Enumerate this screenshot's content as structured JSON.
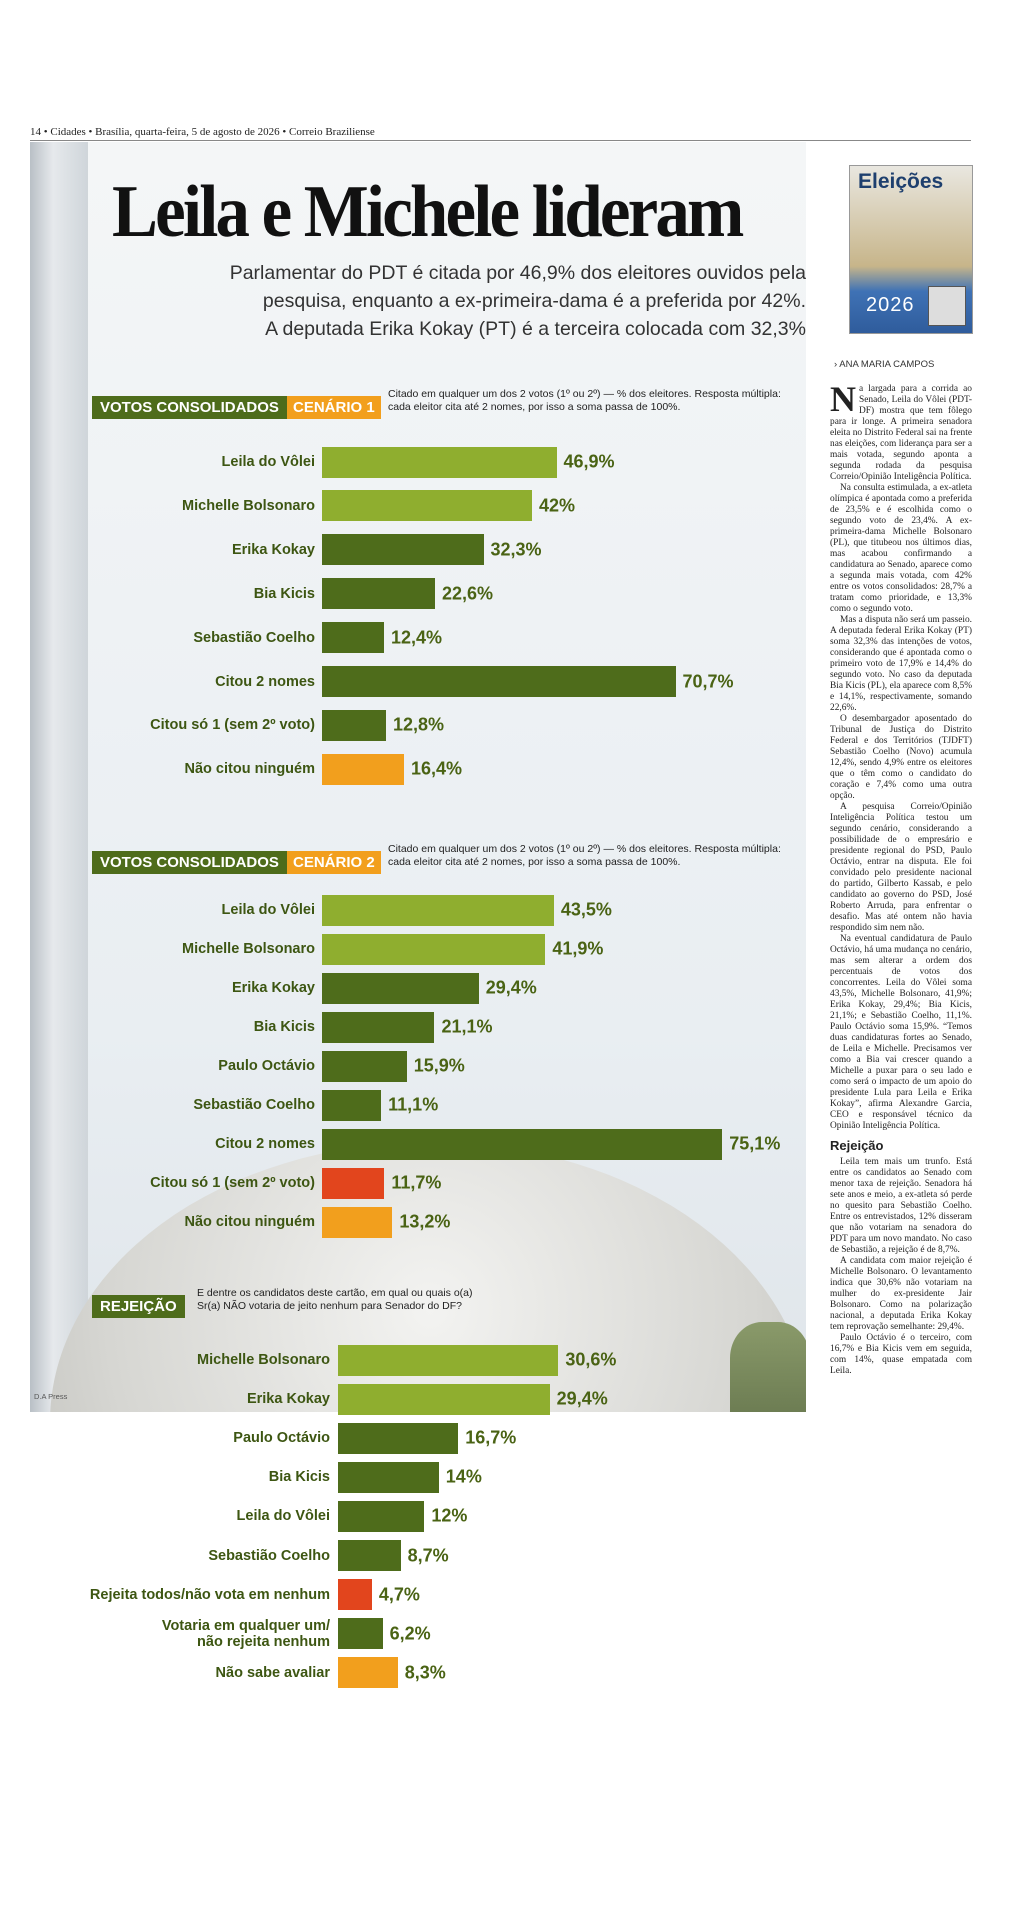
{
  "header": {
    "line": "14 • Cidades • Brasília, quarta-feira, 5 de agosto de 2026 • Correio Braziliense"
  },
  "headline": "Leila e Michele lideram",
  "subtitle": [
    "Parlamentar do PDT é citada por 46,9% dos eleitores ouvidos pela",
    "pesquisa, enquanto a ex-primeira-dama é a preferida por 42%.",
    "A deputada Erika Kokay (PT) é a terceira colocada com 32,3%"
  ],
  "badge": {
    "title": "Eleições",
    "year": "2026"
  },
  "photo_credit": "D.A Press",
  "chart_data": [
    {
      "type": "bar",
      "title": "VOTOS CONSOLIDADOS",
      "subtitle": "CENÁRIO 1",
      "note": "Citado em qualquer um dos 2 votos (1º ou 2º) — % dos eleitores. Resposta múltipla: cada eleitor cita até 2 nomes, por isso a soma passa de 100%.",
      "categories": [
        "Leila do Vôlei",
        "Michelle Bolsonaro",
        "Erika Kokay",
        "Bia Kicis",
        "Sebastião Coelho",
        "Citou 2 nomes",
        "Citou só 1 (sem 2º voto)",
        "Não citou ninguém"
      ],
      "values": [
        46.9,
        42,
        32.3,
        22.6,
        12.4,
        70.7,
        12.8,
        16.4
      ],
      "value_labels": [
        "46,9%",
        "42%",
        "32,3%",
        "22,6%",
        "12,4%",
        "70,7%",
        "12,8%",
        "16,4%"
      ],
      "colors": [
        "#8fae2f",
        "#8fae2f",
        "#4e6c1b",
        "#4e6c1b",
        "#4e6c1b",
        "#4e6c1b",
        "#4e6c1b",
        "#f29f1d"
      ]
    },
    {
      "type": "bar",
      "title": "VOTOS CONSOLIDADOS",
      "subtitle": "CENÁRIO 2",
      "note": "Citado em qualquer um dos 2 votos (1º ou 2º) — % dos eleitores. Resposta múltipla: cada eleitor cita até 2 nomes, por isso a soma passa de 100%.",
      "categories": [
        "Leila do Vôlei",
        "Michelle Bolsonaro",
        "Erika Kokay",
        "Bia Kicis",
        "Paulo Octávio",
        "Sebastião Coelho",
        "Citou 2 nomes",
        "Citou só 1 (sem 2º voto)",
        "Não citou ninguém"
      ],
      "values": [
        43.5,
        41.9,
        29.4,
        21.1,
        15.9,
        11.1,
        75.1,
        11.7,
        13.2
      ],
      "value_labels": [
        "43,5%",
        "41,9%",
        "29,4%",
        "21,1%",
        "15,9%",
        "11,1%",
        "75,1%",
        "11,7%",
        "13,2%"
      ],
      "colors": [
        "#8fae2f",
        "#8fae2f",
        "#4e6c1b",
        "#4e6c1b",
        "#4e6c1b",
        "#4e6c1b",
        "#4e6c1b",
        "#e2451d",
        "#f29f1d"
      ]
    },
    {
      "type": "bar",
      "title": "REJEIÇÃO",
      "note": "E dentre os candidatos deste cartão, em qual ou quais o(a) Sr(a) NÃO votaria de jeito nenhum para Senador do DF?",
      "categories": [
        "Michelle Bolsonaro",
        "Erika Kokay",
        "Paulo Octávio",
        "Bia Kicis",
        "Leila do Vôlei",
        "Sebastião Coelho",
        "Rejeita todos/não vota em nenhum",
        "Votaria em qualquer um/\nnão rejeita nenhum",
        "Não sabe avaliar"
      ],
      "values": [
        30.6,
        29.4,
        16.7,
        14,
        12,
        8.7,
        4.7,
        6.2,
        8.3
      ],
      "value_labels": [
        "30,6%",
        "29,4%",
        "16,7%",
        "14%",
        "12%",
        "8,7%",
        "4,7%",
        "6,2%",
        "8,3%"
      ],
      "colors": [
        "#8fae2f",
        "#8fae2f",
        "#4e6c1b",
        "#4e6c1b",
        "#4e6c1b",
        "#4e6c1b",
        "#e2451d",
        "#4e6c1b",
        "#f29f1d"
      ]
    }
  ],
  "article": {
    "byline": "› ANA MARIA CAMPOS",
    "paragraphs": [
      "Na largada para a corrida ao Senado, Leila do Vôlei (PDT-DF) mostra que tem fôlego para ir longe. A primeira senadora eleita no Distrito Federal sai na frente nas eleições, com liderança para ser a mais votada, segundo aponta a segunda rodada da pesquisa Correio/Opinião Inteligência Política.",
      "Na consulta estimulada, a ex-atleta olímpica é apontada como a preferida de 23,5% e é escolhida como o segundo voto de 23,4%. A ex-primeira-dama Michelle Bolsonaro (PL), que titubeou nos últimos dias, mas acabou confirmando a candidatura ao Senado, aparece como a segunda mais votada, com 42% entre os votos consolidados: 28,7% a tratam como prioridade, e 13,3% como o segundo voto.",
      "Mas a disputa não será um passeio. A deputada federal Erika Kokay (PT) soma 32,3% das intenções de votos, considerando que é apontada como o primeiro voto de 17,9% e 14,4% do segundo voto. No caso da deputada Bia Kicis (PL), ela aparece com 8,5% e 14,1%, respectivamente, somando 22,6%.",
      "O desembargador aposentado do Tribunal de Justiça do Distrito Federal e dos Territórios (TJDFT) Sebastião Coelho (Novo) acumula 12,4%, sendo 4,9% entre os eleitores que o têm como o candidato do coração e 7,4% como uma outra opção.",
      "A pesquisa Correio/Opinião Inteligência Política testou um segundo cenário, considerando a possibilidade de o empresário e presidente regional do PSD, Paulo Octávio, entrar na disputa. Ele foi convidado pelo presidente nacional do partido, Gilberto Kassab, e pelo candidato ao governo do PSD, José Roberto Arruda, para enfrentar o desafio. Mas até ontem não havia respondido sim nem não.",
      "Na eventual candidatura de Paulo Octávio, há uma mudança no cenário, mas sem alterar a ordem dos percentuais de votos dos concorrentes. Leila do Vôlei soma 43,5%, Michelle Bolsonaro, 41,9%; Erika Kokay, 29,4%; Bia Kicis, 21,1%; e Sebastião Coelho, 11,1%. Paulo Octávio soma 15,9%. “Temos duas candidaturas fortes ao Senado, de Leila e Michelle. Precisamos ver como a Bia vai crescer quando a Michelle a puxar para o seu lado e como será o impacto de um apoio do presidente Lula para Leila e Erika Kokay”, afirma Alexandre Garcia, CEO e responsável técnico da Opinião Inteligência Política."
    ],
    "subhead": "Rejeição",
    "paragraphs2": [
      "Leila tem mais um trunfo. Está entre os candidatos ao Senado com menor taxa de rejeição. Senadora há sete anos e meio, a ex-atleta só perde no quesito para Sebastião Coelho. Entre os entrevistados, 12% disseram que não votariam na senadora do PDT para um novo mandato. No caso de Sebastião, a rejeição é de 8,7%.",
      "A candidata com maior rejeição é Michelle Bolsonaro. O levantamento indica que 30,6% não votariam na mulher do ex-presidente Jair Bolsonaro. Como na polarização nacional, a deputada Erika Kokay tem reprovação semelhante: 29,4%.",
      "Paulo Octávio é o terceiro, com 16,7% e Bia Kicis vem em seguida, com 14%, quase empatada com Leila."
    ]
  }
}
